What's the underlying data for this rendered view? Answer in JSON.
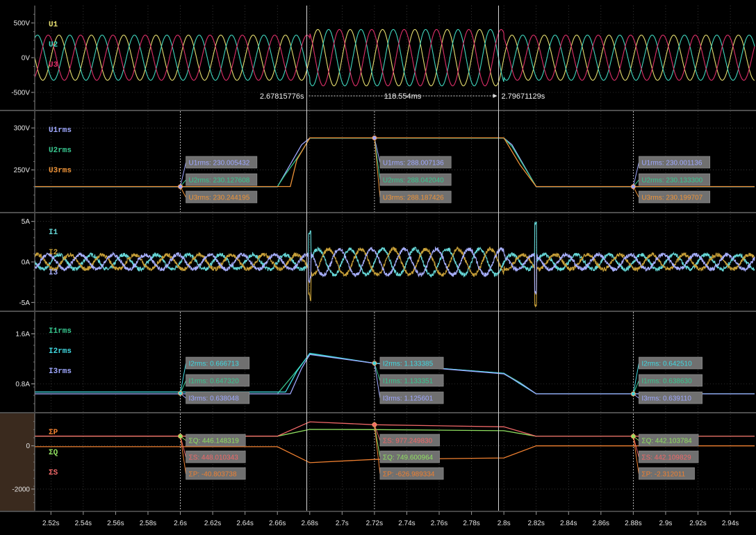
{
  "colors": {
    "u1": "#e8e070",
    "u2": "#40d8c0",
    "u3": "#e0306a",
    "u1rms": "#9fa8ff",
    "u2rms": "#38c890",
    "u3rms": "#f09438",
    "i1": "#66d8d8",
    "i2": "#c8a038",
    "i3": "#a8b0ff",
    "i1rms": "#38c890",
    "i2rms": "#40d8e0",
    "i3rms": "#9fa8ff",
    "p": "#f08030",
    "q": "#90e060",
    "s": "#f06868",
    "label_box": "#707070",
    "background": "#000000",
    "power_axis_bg": "#3a2a1e"
  },
  "chart_data": [
    {
      "id": "voltage",
      "type": "line",
      "ylim": [
        -750,
        750
      ],
      "yticks": [
        {
          "v": 500,
          "label": "500V"
        },
        {
          "v": 0,
          "label": "0V"
        },
        {
          "v": -500,
          "label": "-500V"
        }
      ],
      "series": [
        {
          "name": "U1",
          "color_key": "u1"
        },
        {
          "name": "U2",
          "color_key": "u2"
        },
        {
          "name": "U3",
          "color_key": "u3"
        }
      ],
      "waveform": {
        "frequency_hz": 50,
        "segments": [
          {
            "t0": 2.51,
            "t1": 2.68,
            "amplitude": 325
          },
          {
            "t0": 2.68,
            "t1": 2.8,
            "amplitude": 406
          },
          {
            "t0": 2.8,
            "t1": 2.955,
            "amplitude": 325
          }
        ]
      }
    },
    {
      "id": "vrms",
      "type": "line",
      "ylim": [
        200,
        320
      ],
      "yticks": [
        {
          "v": 300,
          "label": "300V"
        },
        {
          "v": 250,
          "label": "250V"
        }
      ],
      "series": [
        {
          "name": "U1rms",
          "color_key": "u1rms",
          "points": [
            [
              2.51,
              230.0
            ],
            [
              2.66,
              230.0
            ],
            [
              2.675,
              280.0
            ],
            [
              2.68,
              288.0
            ],
            [
              2.8,
              288.0
            ],
            [
              2.805,
              280.0
            ],
            [
              2.82,
              230.0
            ],
            [
              2.955,
              230.0
            ]
          ]
        },
        {
          "name": "U2rms",
          "color_key": "u2rms",
          "points": [
            [
              2.51,
              230.1
            ],
            [
              2.66,
              230.1
            ],
            [
              2.665,
              245.0
            ],
            [
              2.67,
              258.0
            ],
            [
              2.675,
              272.0
            ],
            [
              2.68,
              288.0
            ],
            [
              2.8,
              288.0
            ],
            [
              2.805,
              278.0
            ],
            [
              2.81,
              262.0
            ],
            [
              2.815,
              246.0
            ],
            [
              2.82,
              230.1
            ],
            [
              2.955,
              230.1
            ]
          ]
        },
        {
          "name": "U3rms",
          "color_key": "u3rms",
          "points": [
            [
              2.51,
              230.2
            ],
            [
              2.668,
              230.2
            ],
            [
              2.672,
              262.0
            ],
            [
              2.68,
              288.2
            ],
            [
              2.8,
              288.2
            ],
            [
              2.81,
              256.0
            ],
            [
              2.82,
              230.2
            ],
            [
              2.955,
              230.2
            ]
          ]
        }
      ],
      "annotations": [
        {
          "t": 2.6,
          "y": 230.1,
          "lines": [
            {
              "text": "U1rms: 230.005432",
              "color_key": "u1rms"
            },
            {
              "text": "U2rms: 230.127608",
              "color_key": "u2rms"
            },
            {
              "text": "U3rms: 230.244195",
              "color_key": "u3rms"
            }
          ]
        },
        {
          "t": 2.72,
          "y": 288.1,
          "lines": [
            {
              "text": "U1rms: 288.007136",
              "color_key": "u1rms"
            },
            {
              "text": "U2rms: 288.042040",
              "color_key": "u2rms"
            },
            {
              "text": "U3rms: 288.187426",
              "color_key": "u3rms"
            }
          ]
        },
        {
          "t": 2.88,
          "y": 230.1,
          "lines": [
            {
              "text": "U1rms: 230.001136",
              "color_key": "u1rms"
            },
            {
              "text": "U2rms: 230.133300",
              "color_key": "u2rms"
            },
            {
              "text": "U3rms: 230.199707",
              "color_key": "u3rms"
            }
          ]
        }
      ]
    },
    {
      "id": "current",
      "type": "line",
      "ylim": [
        -6,
        6
      ],
      "yticks": [
        {
          "v": 5,
          "label": "5A"
        },
        {
          "v": 0,
          "label": "0A"
        },
        {
          "v": -5,
          "label": "-5A"
        }
      ],
      "series": [
        {
          "name": "I1",
          "color_key": "i1"
        },
        {
          "name": "I2",
          "color_key": "i2"
        },
        {
          "name": "I3",
          "color_key": "i3"
        }
      ],
      "waveform": {
        "frequency_hz": 50,
        "segments": [
          {
            "t0": 2.51,
            "t1": 2.68,
            "amplitude": 0.9
          },
          {
            "t0": 2.68,
            "t1": 2.8,
            "amplitude": 1.6
          },
          {
            "t0": 2.8,
            "t1": 2.955,
            "amplitude": 0.9
          }
        ]
      }
    },
    {
      "id": "irms",
      "type": "line",
      "ylim": [
        0.35,
        1.95
      ],
      "yticks": [
        {
          "v": 1.6,
          "label": "1.6A"
        },
        {
          "v": 0.8,
          "label": "0.8A"
        }
      ],
      "series": [
        {
          "name": "I1rms",
          "color_key": "i1rms",
          "points": [
            [
              2.51,
              0.64
            ],
            [
              2.66,
              0.64
            ],
            [
              2.67,
              0.95
            ],
            [
              2.68,
              1.28
            ],
            [
              2.72,
              1.13
            ],
            [
              2.8,
              0.97
            ],
            [
              2.81,
              0.82
            ],
            [
              2.82,
              0.64
            ],
            [
              2.955,
              0.64
            ]
          ]
        },
        {
          "name": "I2rms",
          "color_key": "i2rms",
          "points": [
            [
              2.51,
              0.67
            ],
            [
              2.665,
              0.67
            ],
            [
              2.672,
              1.0
            ],
            [
              2.68,
              1.29
            ],
            [
              2.72,
              1.13
            ],
            [
              2.8,
              0.97
            ],
            [
              2.81,
              0.8
            ],
            [
              2.82,
              0.64
            ],
            [
              2.955,
              0.64
            ]
          ]
        },
        {
          "name": "I3rms",
          "color_key": "i3rms",
          "points": [
            [
              2.51,
              0.64
            ],
            [
              2.668,
              0.64
            ],
            [
              2.675,
              1.05
            ],
            [
              2.68,
              1.27
            ],
            [
              2.72,
              1.13
            ],
            [
              2.8,
              0.96
            ],
            [
              2.812,
              0.78
            ],
            [
              2.82,
              0.64
            ],
            [
              2.955,
              0.64
            ]
          ]
        }
      ],
      "annotations": [
        {
          "t": 2.6,
          "y": 0.65,
          "lines": [
            {
              "text": "I2rms: 0.666713",
              "color_key": "i2rms"
            },
            {
              "text": "I1rms: 0.647320",
              "color_key": "i1rms"
            },
            {
              "text": "I3rms: 0.638048",
              "color_key": "i3rms"
            }
          ]
        },
        {
          "t": 2.72,
          "y": 1.13,
          "lines": [
            {
              "text": "I2rms: 1.133385",
              "color_key": "i2rms"
            },
            {
              "text": "I1rms: 1.133351",
              "color_key": "i1rms"
            },
            {
              "text": "I3rms: 1.125601",
              "color_key": "i3rms"
            }
          ]
        },
        {
          "t": 2.88,
          "y": 0.64,
          "lines": [
            {
              "text": "I2rms: 0.642510",
              "color_key": "i2rms"
            },
            {
              "text": "I1rms: 0.638630",
              "color_key": "i1rms"
            },
            {
              "text": "I3rms: 0.639110",
              "color_key": "i3rms"
            }
          ]
        }
      ]
    },
    {
      "id": "power",
      "type": "line",
      "ylim": [
        -3000,
        1500
      ],
      "yticks": [
        {
          "v": 0,
          "label": "0"
        },
        {
          "v": -2000,
          "label": "-2000"
        }
      ],
      "series": [
        {
          "name": "ΣP",
          "color_key": "p",
          "points": [
            [
              2.51,
              -40
            ],
            [
              2.66,
              -40
            ],
            [
              2.68,
              -780
            ],
            [
              2.72,
              -627
            ],
            [
              2.8,
              -560
            ],
            [
              2.82,
              -2
            ],
            [
              2.955,
              -2
            ]
          ]
        },
        {
          "name": "ΣQ",
          "color_key": "q",
          "points": [
            [
              2.51,
              446
            ],
            [
              2.66,
              446
            ],
            [
              2.68,
              760
            ],
            [
              2.72,
              750
            ],
            [
              2.8,
              700
            ],
            [
              2.82,
              442
            ],
            [
              2.955,
              442
            ]
          ]
        },
        {
          "name": "ΣS",
          "color_key": "s",
          "points": [
            [
              2.51,
              448
            ],
            [
              2.66,
              448
            ],
            [
              2.68,
              1110
            ],
            [
              2.72,
              977
            ],
            [
              2.8,
              880
            ],
            [
              2.82,
              442
            ],
            [
              2.955,
              442
            ]
          ]
        }
      ],
      "annotations": [
        {
          "t": 2.6,
          "y": 446,
          "lines": [
            {
              "text": "ΣQ: 446.148319",
              "color_key": "q"
            },
            {
              "text": "ΣS: 448.010343",
              "color_key": "s"
            },
            {
              "text": "ΣP: -40.803738",
              "color_key": "p"
            }
          ]
        },
        {
          "t": 2.72,
          "y": 977,
          "lines": [
            {
              "text": "ΣS: 977.249830",
              "color_key": "s"
            },
            {
              "text": "ΣQ: 749.600964",
              "color_key": "q"
            },
            {
              "text": "ΣP: -626.989334",
              "color_key": "p"
            }
          ]
        },
        {
          "t": 2.88,
          "y": 442,
          "lines": [
            {
              "text": "ΣQ: 442.103784",
              "color_key": "q"
            },
            {
              "text": "ΣS: 442.109829",
              "color_key": "s"
            },
            {
              "text": "ΣP: -2.312011",
              "color_key": "p"
            }
          ]
        }
      ]
    }
  ],
  "time_axis": {
    "range": [
      2.51,
      2.955
    ],
    "ticks": [
      {
        "v": 2.52,
        "label": "2.52s"
      },
      {
        "v": 2.54,
        "label": "2.54s"
      },
      {
        "v": 2.56,
        "label": "2.56s"
      },
      {
        "v": 2.58,
        "label": "2.58s"
      },
      {
        "v": 2.6,
        "label": "2.6s"
      },
      {
        "v": 2.62,
        "label": "2.62s"
      },
      {
        "v": 2.64,
        "label": "2.64s"
      },
      {
        "v": 2.66,
        "label": "2.66s"
      },
      {
        "v": 2.68,
        "label": "2.68s"
      },
      {
        "v": 2.7,
        "label": "2.7s"
      },
      {
        "v": 2.72,
        "label": "2.72s"
      },
      {
        "v": 2.74,
        "label": "2.74s"
      },
      {
        "v": 2.76,
        "label": "2.76s"
      },
      {
        "v": 2.78,
        "label": "2.78s"
      },
      {
        "v": 2.8,
        "label": "2.8s"
      },
      {
        "v": 2.82,
        "label": "2.82s"
      },
      {
        "v": 2.84,
        "label": "2.84s"
      },
      {
        "v": 2.86,
        "label": "2.86s"
      },
      {
        "v": 2.88,
        "label": "2.88s"
      },
      {
        "v": 2.9,
        "label": "2.9s"
      },
      {
        "v": 2.92,
        "label": "2.92s"
      },
      {
        "v": 2.94,
        "label": "2.94s"
      }
    ]
  },
  "cursors": {
    "start": {
      "t": 2.67815776,
      "label": "2.67815776s"
    },
    "end": {
      "t": 2.79671129,
      "label": "2.79671129s"
    },
    "delta_label": "118.554ms",
    "marker_times": [
      2.6,
      2.72,
      2.88
    ]
  }
}
